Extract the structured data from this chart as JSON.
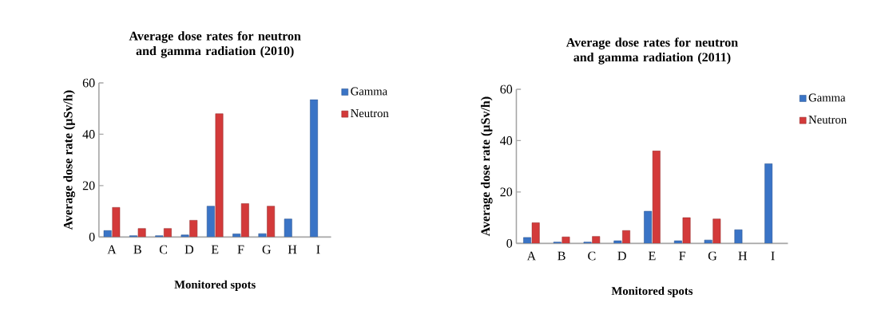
{
  "chart_data": [
    {
      "type": "bar",
      "title": "Average dose rates for neutron and gamma radiation (2010)",
      "xlabel": "Monitored spots",
      "ylabel": "Average dose rate (µSv/h)",
      "categories": [
        "A",
        "B",
        "C",
        "D",
        "E",
        "F",
        "G",
        "H",
        "I"
      ],
      "ylim": [
        0,
        60
      ],
      "yticks": [
        0,
        20,
        40,
        60
      ],
      "legend": "right",
      "series": [
        {
          "name": "Gamma",
          "color": "#3a74c6",
          "values": [
            2.5,
            0.5,
            0.5,
            0.8,
            12,
            1.2,
            1.3,
            7,
            53.5
          ]
        },
        {
          "name": "Neutron",
          "color": "#d33a3a",
          "values": [
            11.5,
            3.3,
            3.3,
            6.5,
            48,
            13,
            12,
            null,
            null
          ]
        }
      ]
    },
    {
      "type": "bar",
      "title": "Average dose rates for neutron and gamma radiation (2011)",
      "xlabel": "Monitored spots",
      "ylabel": "Average dose rate (µSv/h)",
      "categories": [
        "A",
        "B",
        "C",
        "D",
        "E",
        "F",
        "G",
        "H",
        "I"
      ],
      "ylim": [
        0,
        60
      ],
      "yticks": [
        0,
        20,
        40,
        60
      ],
      "legend": "right",
      "series": [
        {
          "name": "Gamma",
          "color": "#3a74c6",
          "values": [
            2.3,
            0.5,
            0.5,
            1,
            12.5,
            1,
            1.3,
            5.3,
            31
          ]
        },
        {
          "name": "Neutron",
          "color": "#d33a3a",
          "values": [
            8,
            2.5,
            2.7,
            5,
            36,
            10,
            9.5,
            null,
            null
          ]
        }
      ]
    }
  ]
}
